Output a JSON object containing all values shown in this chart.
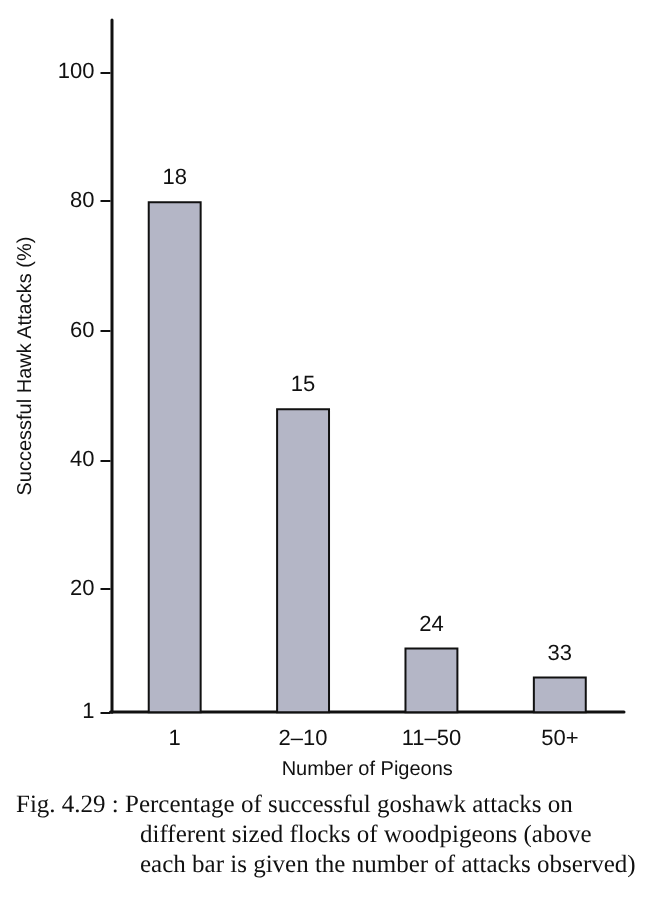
{
  "chart_data": {
    "type": "bar",
    "xlabel": "Number of Pigeons",
    "ylabel": "Successful Hawk Attacks (%)",
    "categories": [
      "1",
      "2–10",
      "11–50",
      "50+"
    ],
    "values": [
      80,
      48,
      11,
      6.5
    ],
    "color": "#b4b6c6",
    "ylim": [
      1,
      108
    ],
    "yticks": [
      1,
      20,
      40,
      60,
      80,
      100
    ],
    "grid": false,
    "annotations": [
      {
        "text": "18",
        "x": "1",
        "y": 80
      },
      {
        "text": "15",
        "x": "2–10",
        "y": 48
      },
      {
        "text": "24",
        "x": "11–50",
        "y": 11
      },
      {
        "text": "33",
        "x": "50+",
        "y": 6.5
      },
      "Fig. 4.29 : Percentage of successful goshawk attacks on different sized flocks of woodpigeons (above each bar is given the number of attacks observed)"
    ]
  }
}
